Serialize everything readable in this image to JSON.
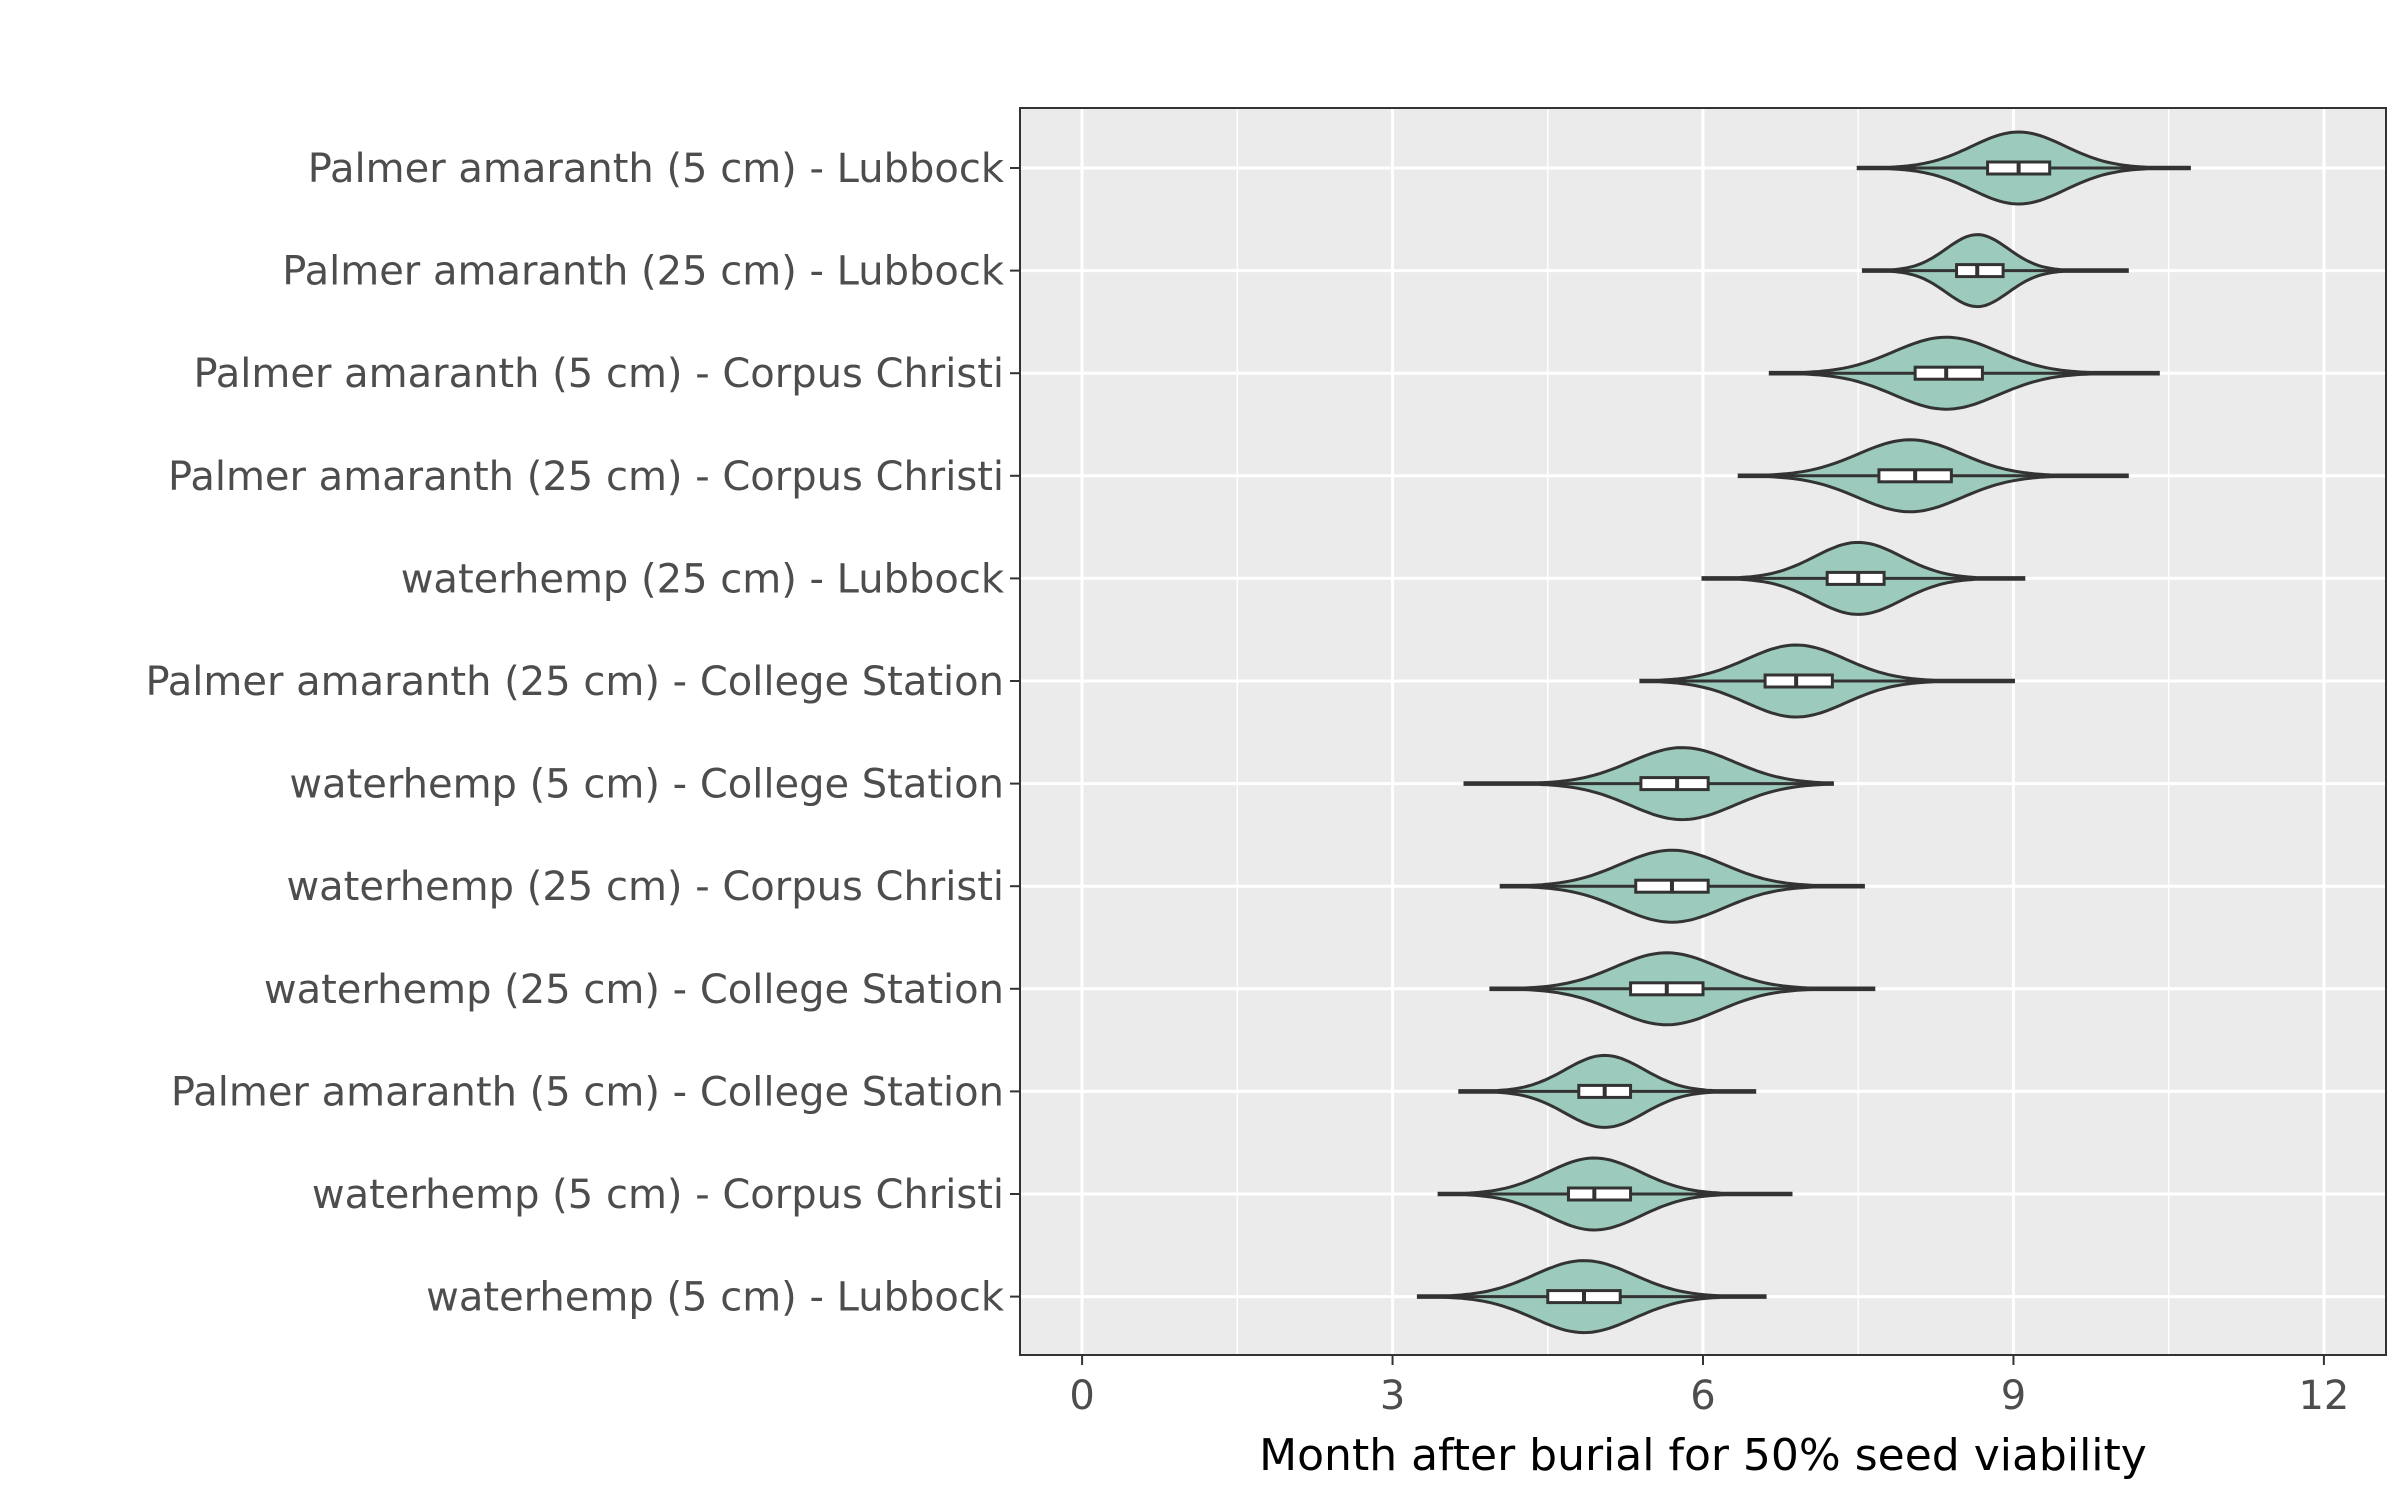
{
  "chart_data": {
    "type": "violin",
    "title": "",
    "xlabel": "Month after burial for 50% seed viability",
    "ylabel": "",
    "xlim": [
      -0.6,
      12.6
    ],
    "xticks": [
      0,
      3,
      6,
      9,
      12
    ],
    "xtick_labels": [
      "0",
      "3",
      "6",
      "9",
      "12"
    ],
    "grid": true,
    "fill_color": "#9ccbbd",
    "categories": [
      "Palmer amaranth (5 cm) - Lubbock",
      "Palmer amaranth (25 cm) - Lubbock",
      "Palmer amaranth (5 cm) - Corpus Christi",
      "Palmer amaranth (25 cm) - Corpus Christi",
      "waterhemp (25 cm) - Lubbock",
      "Palmer amaranth (25 cm) - College Station",
      "waterhemp (5 cm) - College Station",
      "waterhemp (25 cm) - Corpus Christi",
      "waterhemp (25 cm) - College Station",
      "Palmer amaranth (5 cm) - College Station",
      "waterhemp (5 cm) - Corpus Christi",
      "waterhemp (5 cm) - Lubbock"
    ],
    "violins": [
      {
        "min": 7.5,
        "max": 10.7,
        "center": 9.05,
        "spread": 0.45,
        "q1": 8.75,
        "median": 9.05,
        "q3": 9.35
      },
      {
        "min": 7.55,
        "max": 10.1,
        "center": 8.65,
        "spread": 0.3,
        "q1": 8.45,
        "median": 8.65,
        "q3": 8.9
      },
      {
        "min": 6.65,
        "max": 10.4,
        "center": 8.35,
        "spread": 0.5,
        "q1": 8.05,
        "median": 8.35,
        "q3": 8.7
      },
      {
        "min": 6.35,
        "max": 10.1,
        "center": 8.0,
        "spread": 0.5,
        "q1": 7.7,
        "median": 8.05,
        "q3": 8.4
      },
      {
        "min": 6.0,
        "max": 9.1,
        "center": 7.5,
        "spread": 0.42,
        "q1": 7.2,
        "median": 7.5,
        "q3": 7.75
      },
      {
        "min": 5.4,
        "max": 9.0,
        "center": 6.9,
        "spread": 0.48,
        "q1": 6.6,
        "median": 6.9,
        "q3": 7.25
      },
      {
        "min": 3.7,
        "max": 7.25,
        "center": 5.8,
        "spread": 0.5,
        "q1": 5.4,
        "median": 5.75,
        "q3": 6.05
      },
      {
        "min": 4.05,
        "max": 7.55,
        "center": 5.7,
        "spread": 0.5,
        "q1": 5.35,
        "median": 5.7,
        "q3": 6.05
      },
      {
        "min": 3.95,
        "max": 7.65,
        "center": 5.65,
        "spread": 0.5,
        "q1": 5.3,
        "median": 5.65,
        "q3": 6.0
      },
      {
        "min": 3.65,
        "max": 6.5,
        "center": 5.05,
        "spread": 0.38,
        "q1": 4.8,
        "median": 5.05,
        "q3": 5.3
      },
      {
        "min": 3.45,
        "max": 6.85,
        "center": 4.95,
        "spread": 0.45,
        "q1": 4.7,
        "median": 4.95,
        "q3": 5.3
      },
      {
        "min": 3.25,
        "max": 6.6,
        "center": 4.85,
        "spread": 0.48,
        "q1": 4.5,
        "median": 4.85,
        "q3": 5.2
      }
    ]
  }
}
